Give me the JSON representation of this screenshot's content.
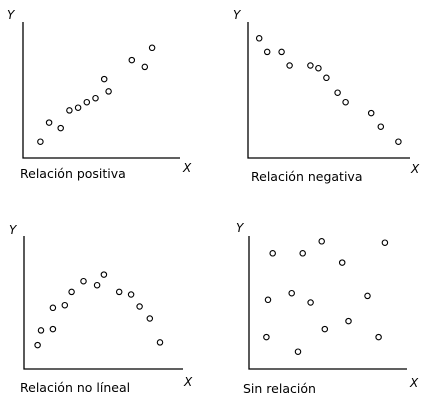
{
  "chart_data": [
    {
      "type": "scatter",
      "title": "Relación positiva",
      "xlabel": "X",
      "ylabel": "Y",
      "xlim": [
        0,
        10
      ],
      "ylim": [
        0,
        10
      ],
      "grid": false,
      "points": [
        {
          "x": 1.2,
          "y": 1.2
        },
        {
          "x": 1.8,
          "y": 2.6
        },
        {
          "x": 2.6,
          "y": 2.2
        },
        {
          "x": 3.2,
          "y": 3.5
        },
        {
          "x": 3.8,
          "y": 3.7
        },
        {
          "x": 4.4,
          "y": 4.1
        },
        {
          "x": 5.0,
          "y": 4.4
        },
        {
          "x": 5.6,
          "y": 5.8
        },
        {
          "x": 5.9,
          "y": 4.9
        },
        {
          "x": 7.5,
          "y": 7.2
        },
        {
          "x": 8.4,
          "y": 6.7
        },
        {
          "x": 8.9,
          "y": 8.1
        }
      ]
    },
    {
      "type": "scatter",
      "title": "Relación negativa",
      "xlabel": "X",
      "ylabel": "Y",
      "xlim": [
        0,
        10
      ],
      "ylim": [
        0,
        10
      ],
      "grid": false,
      "points": [
        {
          "x": 0.7,
          "y": 8.8
        },
        {
          "x": 1.2,
          "y": 7.8
        },
        {
          "x": 2.1,
          "y": 7.8
        },
        {
          "x": 2.6,
          "y": 6.8
        },
        {
          "x": 3.9,
          "y": 6.8
        },
        {
          "x": 4.4,
          "y": 6.6
        },
        {
          "x": 4.9,
          "y": 5.9
        },
        {
          "x": 5.6,
          "y": 4.8
        },
        {
          "x": 6.1,
          "y": 4.1
        },
        {
          "x": 7.7,
          "y": 3.3
        },
        {
          "x": 8.3,
          "y": 2.3
        },
        {
          "x": 9.4,
          "y": 1.2
        }
      ]
    },
    {
      "type": "scatter",
      "title": "Relación no líneal",
      "xlabel": "X",
      "ylabel": "Y",
      "xlim": [
        0,
        10
      ],
      "ylim": [
        0,
        10
      ],
      "grid": false,
      "points": [
        {
          "x": 0.8,
          "y": 1.8
        },
        {
          "x": 1.0,
          "y": 2.9
        },
        {
          "x": 1.7,
          "y": 3.0
        },
        {
          "x": 1.7,
          "y": 4.6
        },
        {
          "x": 2.4,
          "y": 4.8
        },
        {
          "x": 2.8,
          "y": 5.8
        },
        {
          "x": 3.5,
          "y": 6.6
        },
        {
          "x": 4.3,
          "y": 6.3
        },
        {
          "x": 4.7,
          "y": 7.1
        },
        {
          "x": 5.6,
          "y": 5.8
        },
        {
          "x": 6.3,
          "y": 5.6
        },
        {
          "x": 6.8,
          "y": 4.7
        },
        {
          "x": 7.4,
          "y": 3.8
        },
        {
          "x": 8.0,
          "y": 2.0
        }
      ]
    },
    {
      "type": "scatter",
      "title": "Sin relación",
      "xlabel": "X",
      "ylabel": "Y",
      "xlim": [
        0,
        10
      ],
      "ylim": [
        0,
        10
      ],
      "grid": false,
      "points": [
        {
          "x": 1.1,
          "y": 2.4
        },
        {
          "x": 1.2,
          "y": 5.2
        },
        {
          "x": 1.5,
          "y": 8.7
        },
        {
          "x": 2.7,
          "y": 5.7
        },
        {
          "x": 3.1,
          "y": 1.3
        },
        {
          "x": 3.4,
          "y": 8.7
        },
        {
          "x": 3.9,
          "y": 5.0
        },
        {
          "x": 4.6,
          "y": 9.6
        },
        {
          "x": 4.8,
          "y": 3.0
        },
        {
          "x": 5.9,
          "y": 8.0
        },
        {
          "x": 6.3,
          "y": 3.6
        },
        {
          "x": 7.5,
          "y": 5.5
        },
        {
          "x": 8.2,
          "y": 2.4
        },
        {
          "x": 8.6,
          "y": 9.5
        }
      ]
    }
  ]
}
